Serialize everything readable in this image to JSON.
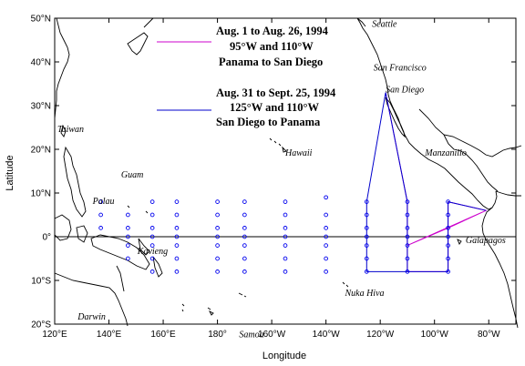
{
  "axes": {
    "xlabel": "Longitude",
    "ylabel": "Latitude",
    "lon_ticks": [
      {
        "value": 120,
        "label": "120°E"
      },
      {
        "value": 140,
        "label": "140°E"
      },
      {
        "value": 160,
        "label": "160°E"
      },
      {
        "value": 180,
        "label": "180°"
      },
      {
        "value": 200,
        "label": "160°W"
      },
      {
        "value": 220,
        "label": "140°W"
      },
      {
        "value": 240,
        "label": "120°W"
      },
      {
        "value": 260,
        "label": "100°W"
      },
      {
        "value": 280,
        "label": "80°W"
      }
    ],
    "lat_ticks": [
      {
        "value": 50,
        "label": "50°N"
      },
      {
        "value": 40,
        "label": "40°N"
      },
      {
        "value": 30,
        "label": "30°N"
      },
      {
        "value": 20,
        "label": "20°N"
      },
      {
        "value": 10,
        "label": "10°N"
      },
      {
        "value": 0,
        "label": "0°"
      },
      {
        "value": -10,
        "label": "10°S"
      },
      {
        "value": -20,
        "label": "20°S"
      }
    ],
    "lon_range": [
      120,
      290
    ],
    "lat_range": [
      -20,
      50
    ],
    "equator_line": true
  },
  "legend": {
    "leg1": {
      "color": "#cc00cc",
      "lines": [
        "Aug. 1 to Aug. 26, 1994",
        "95°W and 110°W",
        "Panama to San Diego"
      ]
    },
    "leg2": {
      "color": "#0000cc",
      "lines": [
        "Aug. 31 to Sept. 25, 1994",
        "125°W and 110°W",
        "San Diego to Panama"
      ]
    }
  },
  "places": [
    {
      "name": "Seattle",
      "lon": 237,
      "lat": 48
    },
    {
      "name": "San Francisco",
      "lon": 237.5,
      "lat": 38
    },
    {
      "name": "San Diego",
      "lon": 242,
      "lat": 33
    },
    {
      "name": "Taiwan",
      "lon": 121,
      "lat": 24
    },
    {
      "name": "Manzanillo",
      "lon": 256.5,
      "lat": 18.5
    },
    {
      "name": "Hawaii",
      "lon": 205,
      "lat": 18.5
    },
    {
      "name": "Guam",
      "lon": 144.5,
      "lat": 13.5
    },
    {
      "name": "Palau",
      "lon": 134,
      "lat": 7.5
    },
    {
      "name": "Kavieng",
      "lon": 150.5,
      "lat": -4
    },
    {
      "name": "Galapagos",
      "lon": 271.5,
      "lat": -1.5
    },
    {
      "name": "Nuka Hiva",
      "lon": 227,
      "lat": -13.5
    },
    {
      "name": "Darwin",
      "lon": 128.5,
      "lat": -19
    },
    {
      "name": "Samoa",
      "lon": 188,
      "lat": -23
    }
  ],
  "buoy_lines": [
    {
      "lon": 137,
      "lats": [
        8,
        5,
        2
      ]
    },
    {
      "lon": 147,
      "lats": [
        5,
        2,
        0,
        -2,
        -5
      ]
    },
    {
      "lon": 156,
      "lats": [
        8,
        5,
        2,
        0,
        -2,
        -5,
        -8
      ]
    },
    {
      "lon": 165,
      "lats": [
        8,
        5,
        2,
        0,
        -2,
        -5,
        -8
      ]
    },
    {
      "lon": 180,
      "lats": [
        8,
        5,
        2,
        0,
        -2,
        -5,
        -8
      ]
    },
    {
      "lon": 190,
      "lats": [
        8,
        5,
        2,
        0,
        -2,
        -5,
        -8
      ]
    },
    {
      "lon": 205,
      "lats": [
        8,
        5,
        2,
        0,
        -2,
        -5,
        -8
      ]
    },
    {
      "lon": 220,
      "lats": [
        9,
        5,
        2,
        0,
        -2,
        -5,
        -8
      ]
    },
    {
      "lon": 235,
      "lats": [
        8,
        5,
        2,
        0,
        -2,
        -5,
        -8
      ]
    },
    {
      "lon": 250,
      "lats": [
        8,
        5,
        2,
        0,
        -2,
        -5,
        -8
      ]
    },
    {
      "lon": 265,
      "lats": [
        8,
        5,
        2,
        0,
        -2,
        -5,
        -8
      ]
    }
  ],
  "cruise_tracks": [
    {
      "id": "leg1",
      "color": "#cc00cc",
      "path": [
        [
          242,
          33
        ],
        [
          250,
          8
        ],
        [
          250,
          -8
        ],
        [
          265,
          -8
        ],
        [
          265,
          8
        ],
        [
          279,
          6
        ],
        [
          250,
          -2
        ],
        [
          265,
          2
        ],
        [
          279,
          6
        ]
      ]
    },
    {
      "id": "leg2",
      "color": "#0000cc",
      "path": [
        [
          279,
          6
        ],
        [
          265,
          8
        ],
        [
          265,
          -8
        ],
        [
          250,
          -8
        ],
        [
          235,
          -8
        ],
        [
          235,
          8
        ],
        [
          242,
          33
        ],
        [
          250,
          8
        ],
        [
          250,
          -8
        ]
      ]
    }
  ]
}
